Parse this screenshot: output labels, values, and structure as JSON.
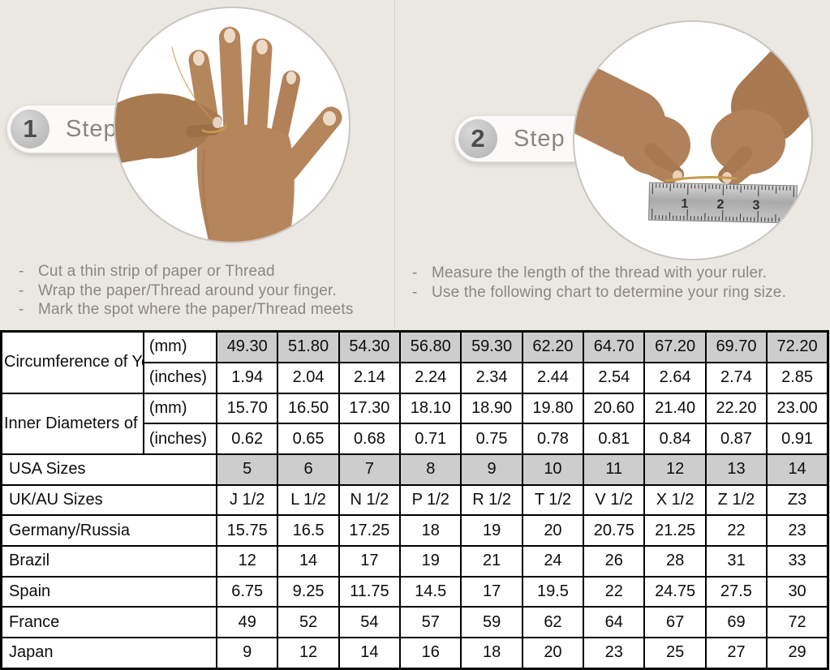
{
  "page": {
    "background": "#ebe8e3"
  },
  "steps": [
    {
      "number": "1",
      "label": "Step",
      "illustration": "hand-with-thread",
      "instructions": [
        "Cut a thin strip of paper or Thread",
        "Wrap the paper/Thread around your finger.",
        "Mark the spot where the paper/Thread meets"
      ]
    },
    {
      "number": "2",
      "label": "Step",
      "illustration": "measuring-thread-with-ruler",
      "instructions": [
        "Measure the length of the thread with your ruler.",
        "Use the following chart to determine your ring size."
      ]
    }
  ],
  "table": {
    "groups": [
      {
        "label": "Circumference of Your Finger",
        "rows": [
          {
            "unit": "(mm)",
            "shaded": true,
            "values": [
              "49.30",
              "51.80",
              "54.30",
              "56.80",
              "59.30",
              "62.20",
              "64.70",
              "67.20",
              "69.70",
              "72.20"
            ]
          },
          {
            "unit": "(inches)",
            "shaded": false,
            "values": [
              "1.94",
              "2.04",
              "2.14",
              "2.24",
              "2.34",
              "2.44",
              "2.54",
              "2.64",
              "2.74",
              "2.85"
            ]
          }
        ]
      },
      {
        "label": "Inner Diameters of Rings",
        "rows": [
          {
            "unit": "(mm)",
            "shaded": false,
            "values": [
              "15.70",
              "16.50",
              "17.30",
              "18.10",
              "18.90",
              "19.80",
              "20.60",
              "21.40",
              "22.20",
              "23.00"
            ]
          },
          {
            "unit": "(inches)",
            "shaded": false,
            "values": [
              "0.62",
              "0.65",
              "0.68",
              "0.71",
              "0.75",
              "0.78",
              "0.81",
              "0.84",
              "0.87",
              "0.91"
            ]
          }
        ]
      }
    ],
    "rows": [
      {
        "label": "USA Sizes",
        "shaded": true,
        "values": [
          "5",
          "6",
          "7",
          "8",
          "9",
          "10",
          "11",
          "12",
          "13",
          "14"
        ]
      },
      {
        "label": "UK/AU Sizes",
        "shaded": false,
        "values": [
          "J 1/2",
          "L 1/2",
          "N 1/2",
          "P 1/2",
          "R 1/2",
          "T 1/2",
          "V 1/2",
          "X 1/2",
          "Z 1/2",
          "Z3"
        ]
      },
      {
        "label": "Germany/Russia",
        "shaded": false,
        "values": [
          "15.75",
          "16.5",
          "17.25",
          "18",
          "19",
          "20",
          "20.75",
          "21.25",
          "22",
          "23"
        ]
      },
      {
        "label": "Brazil",
        "shaded": false,
        "values": [
          "12",
          "14",
          "17",
          "19",
          "21",
          "24",
          "26",
          "28",
          "31",
          "33"
        ]
      },
      {
        "label": "Spain",
        "shaded": false,
        "values": [
          "6.75",
          "9.25",
          "11.75",
          "14.5",
          "17",
          "19.5",
          "22",
          "24.75",
          "27.5",
          "30"
        ]
      },
      {
        "label": "France",
        "shaded": false,
        "values": [
          "49",
          "52",
          "54",
          "57",
          "59",
          "62",
          "64",
          "67",
          "69",
          "72"
        ]
      },
      {
        "label": "Japan",
        "shaded": false,
        "values": [
          "9",
          "12",
          "14",
          "16",
          "18",
          "20",
          "23",
          "25",
          "27",
          "29"
        ]
      }
    ]
  },
  "colors": {
    "shaded_cell": "#cdcdcd",
    "table_border": "#000000",
    "step_text": "#8a8580",
    "thread_gold": "#c79b4d"
  }
}
